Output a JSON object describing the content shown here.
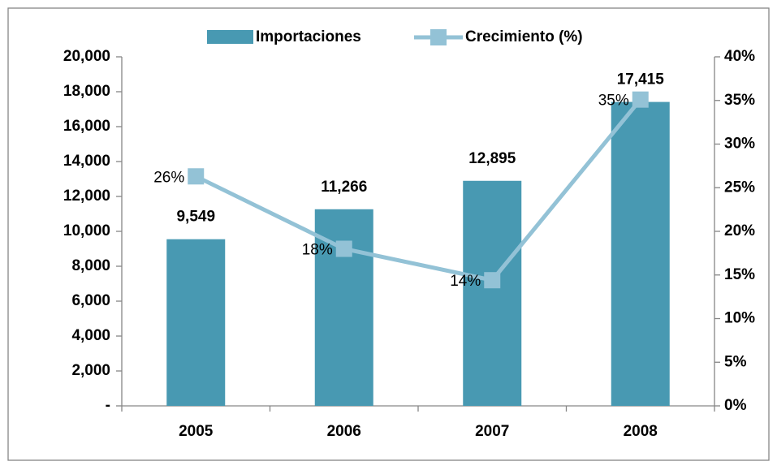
{
  "chart_data": {
    "type": "bar",
    "categories": [
      "2005",
      "2006",
      "2007",
      "2008"
    ],
    "series": [
      {
        "name": "Importaciones",
        "color": "#4899b2",
        "values": [
          9549,
          11266,
          12895,
          17415
        ],
        "value_labels": [
          "9,549",
          "11,266",
          "12,895",
          "17,415"
        ]
      },
      {
        "name": "Crecimiento (%)",
        "color": "#93c2d6",
        "axis": "y2",
        "values": [
          26.3,
          18.0,
          14.4,
          35.1
        ],
        "value_labels": [
          "26%",
          "18%",
          "14%",
          "35%"
        ]
      }
    ],
    "ylim": [
      0,
      20000
    ],
    "yticks": [
      {
        "value": 0,
        "label": "-"
      },
      {
        "value": 2000,
        "label": "2,000"
      },
      {
        "value": 4000,
        "label": "4,000"
      },
      {
        "value": 6000,
        "label": "6,000"
      },
      {
        "value": 8000,
        "label": "8,000"
      },
      {
        "value": 10000,
        "label": "10,000"
      },
      {
        "value": 12000,
        "label": "12,000"
      },
      {
        "value": 14000,
        "label": "14,000"
      },
      {
        "value": 16000,
        "label": "16,000"
      },
      {
        "value": 18000,
        "label": "18,000"
      },
      {
        "value": 20000,
        "label": "20,000"
      }
    ],
    "y2lim": [
      0,
      40
    ],
    "y2ticks": [
      {
        "value": 0,
        "label": "0%"
      },
      {
        "value": 5,
        "label": "5%"
      },
      {
        "value": 10,
        "label": "10%"
      },
      {
        "value": 15,
        "label": "15%"
      },
      {
        "value": 20,
        "label": "20%"
      },
      {
        "value": 25,
        "label": "25%"
      },
      {
        "value": 30,
        "label": "30%"
      },
      {
        "value": 35,
        "label": "35%"
      },
      {
        "value": 40,
        "label": "40%"
      }
    ],
    "legend": "top"
  }
}
